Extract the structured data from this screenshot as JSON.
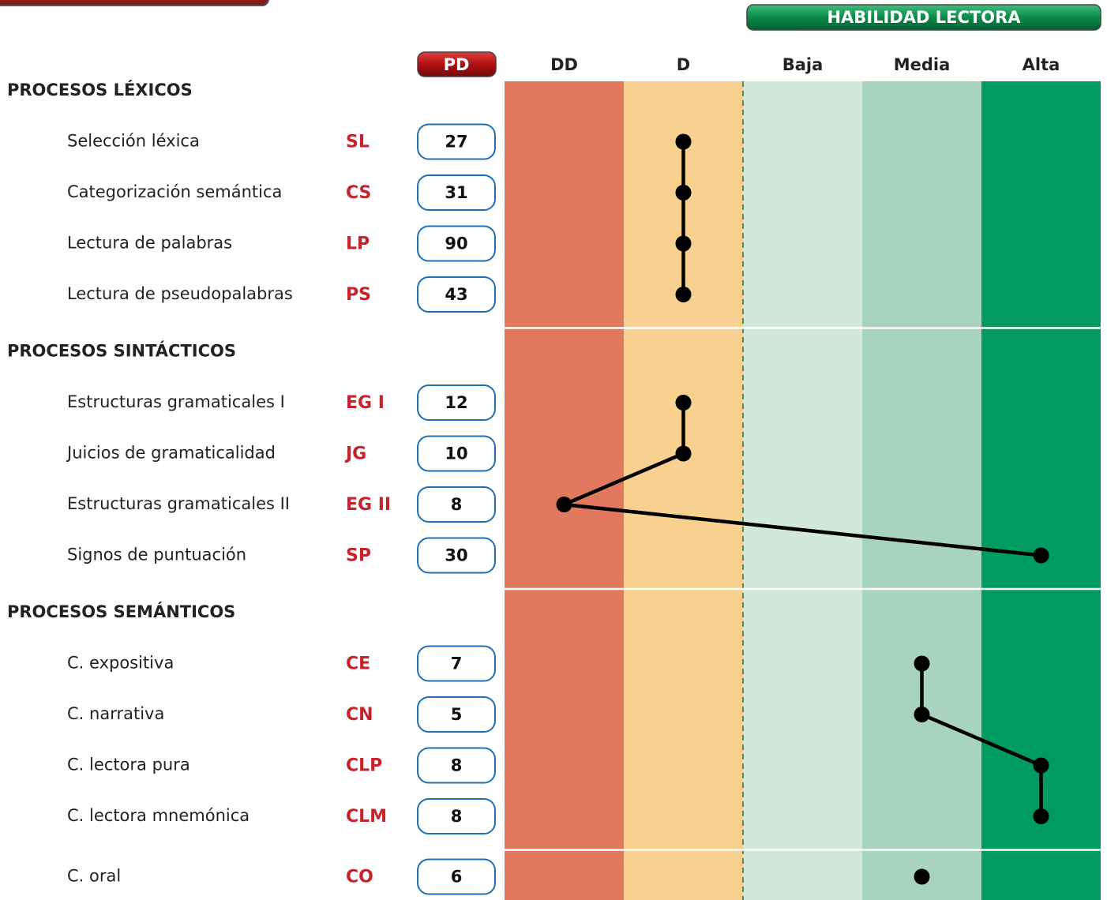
{
  "header": {
    "title": "HABILIDAD LECTORA",
    "pd_label": "PD"
  },
  "levels": [
    "DD",
    "D",
    "Baja",
    "Media",
    "Alta"
  ],
  "sections": [
    {
      "title": "PROCESOS LÉXICOS",
      "items": [
        {
          "label": "Selección léxica",
          "code": "SL",
          "pd": 27,
          "level": 1
        },
        {
          "label": "Categorización semántica",
          "code": "CS",
          "pd": 31,
          "level": 1
        },
        {
          "label": "Lectura de palabras",
          "code": "LP",
          "pd": 90,
          "level": 1
        },
        {
          "label": "Lectura de pseudopalabras",
          "code": "PS",
          "pd": 43,
          "level": 1
        }
      ]
    },
    {
      "title": "PROCESOS SINTÁCTICOS",
      "items": [
        {
          "label": "Estructuras gramaticales I",
          "code": "EG I",
          "pd": 12,
          "level": 1
        },
        {
          "label": "Juicios de gramaticalidad",
          "code": "JG",
          "pd": 10,
          "level": 1
        },
        {
          "label": "Estructuras gramaticales II",
          "code": "EG II",
          "pd": 8,
          "level": 0
        },
        {
          "label": "Signos de puntuación",
          "code": "SP",
          "pd": 30,
          "level": 4
        }
      ]
    },
    {
      "title": "PROCESOS SEMÁNTICOS",
      "items": [
        {
          "label": "C. expositiva",
          "code": "CE",
          "pd": 7,
          "level": 3
        },
        {
          "label": "C. narrativa",
          "code": "CN",
          "pd": 5,
          "level": 3
        },
        {
          "label": "C. lectora pura",
          "code": "CLP",
          "pd": 8,
          "level": 4
        },
        {
          "label": "C. lectora mnemónica",
          "code": "CLM",
          "pd": 8,
          "level": 4
        }
      ]
    },
    {
      "items": [
        {
          "label": "C. oral",
          "code": "CO",
          "pd": 6,
          "level": 3
        }
      ]
    }
  ]
}
